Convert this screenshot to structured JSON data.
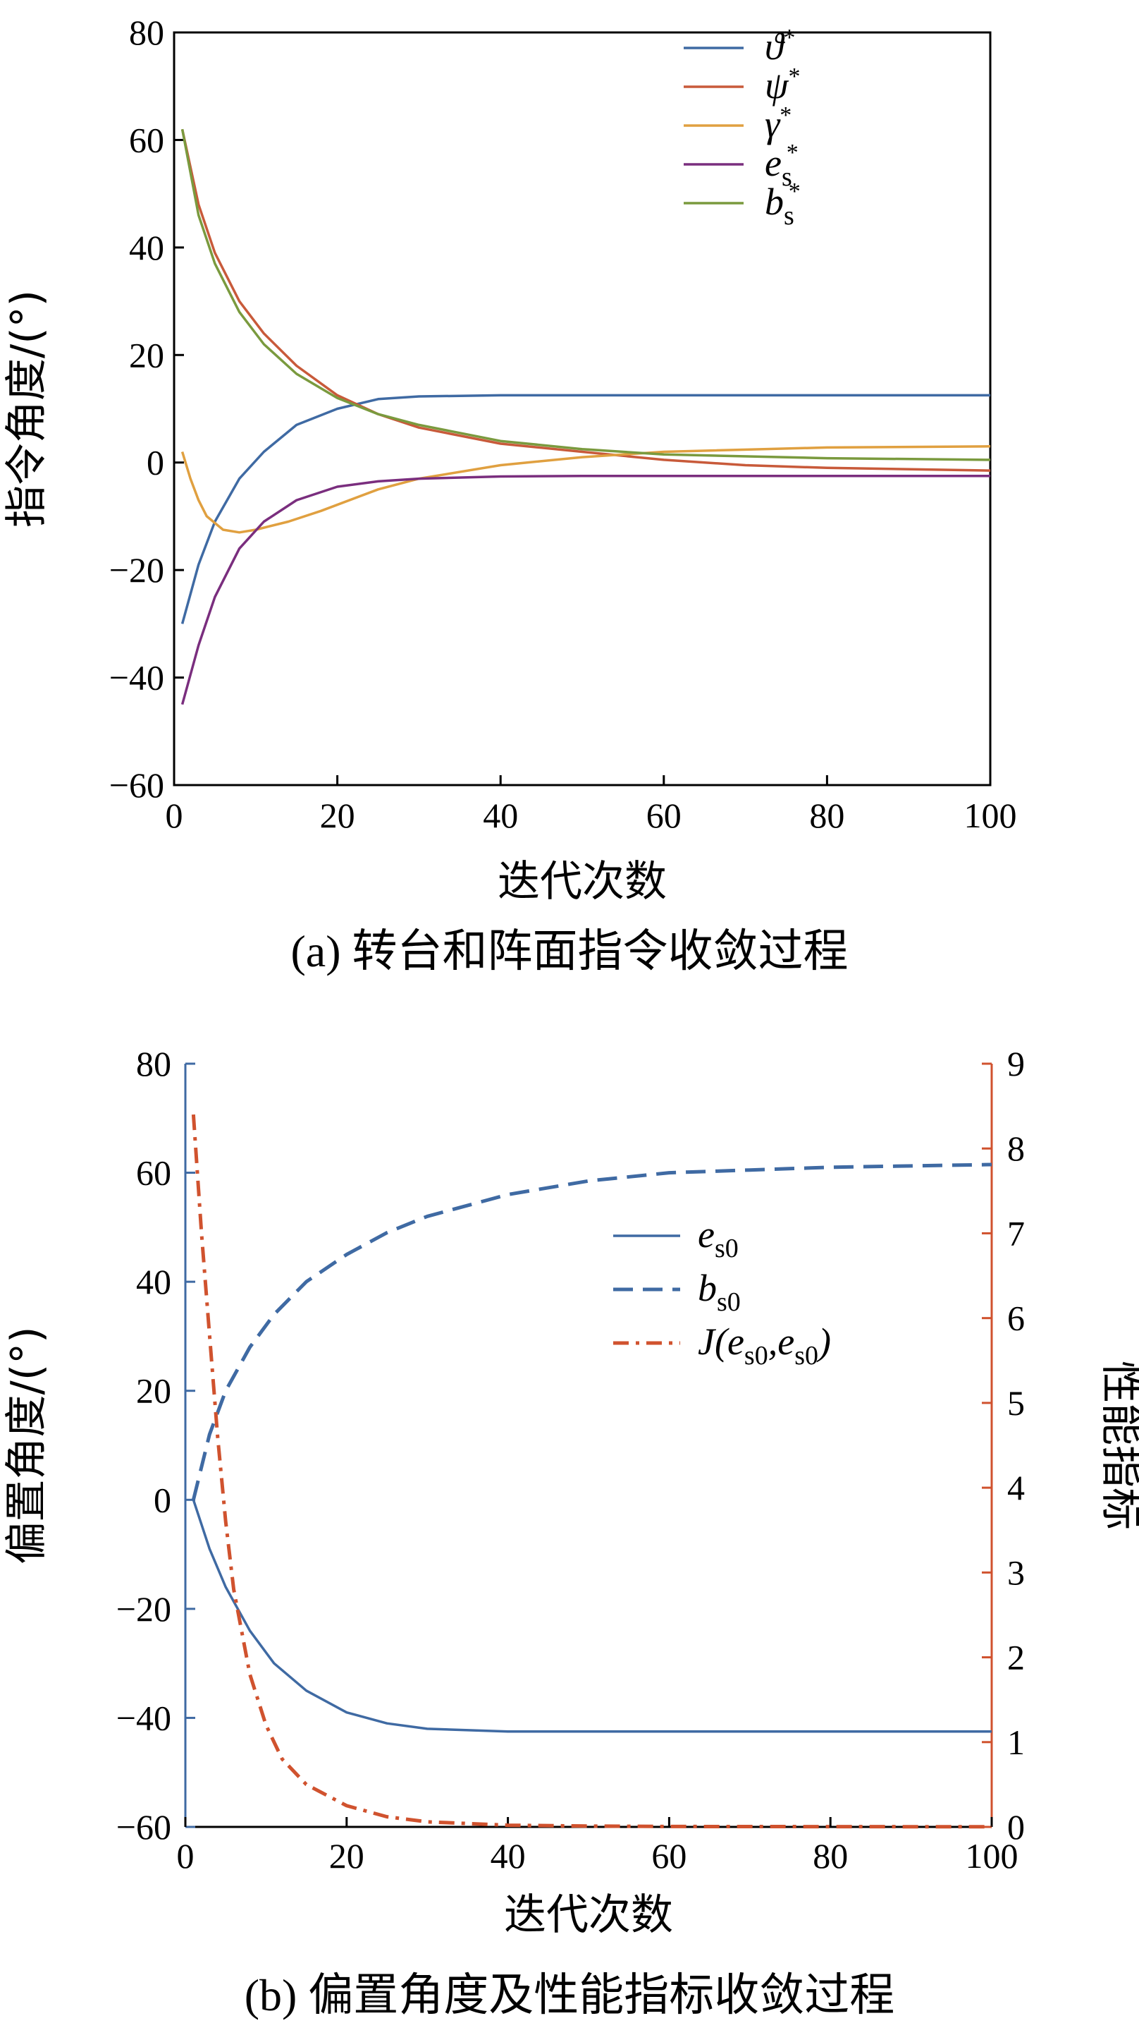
{
  "chart_data": [
    {
      "type": "line",
      "caption": "(a) 转台和阵面指令收敛过程",
      "xlabel": "迭代次数",
      "ylabel": "指令角度/(°)",
      "xlim": [
        0,
        100
      ],
      "ylim": [
        -60,
        80
      ],
      "xticks": [
        "0",
        "20",
        "40",
        "60",
        "80",
        "100"
      ],
      "yticks": [
        "80",
        "60",
        "40",
        "20",
        "0",
        "−20",
        "−40",
        "−60"
      ],
      "legend_position": "top-right",
      "series": [
        {
          "name": "ϑ*",
          "base": "ϑ",
          "sub": "",
          "sup": "*",
          "color": "#3f6aa3",
          "x": [
            1,
            3,
            5,
            8,
            11,
            15,
            20,
            25,
            30,
            40,
            50,
            60,
            80,
            100
          ],
          "y": [
            -30,
            -19,
            -11,
            -3,
            2,
            7,
            10,
            11.8,
            12.3,
            12.5,
            12.5,
            12.5,
            12.5,
            12.5
          ]
        },
        {
          "name": "ψ*",
          "base": "ψ",
          "sub": "",
          "sup": "*",
          "color": "#c85a3a",
          "x": [
            1,
            3,
            5,
            8,
            11,
            15,
            20,
            25,
            30,
            40,
            50,
            60,
            70,
            80,
            100
          ],
          "y": [
            62,
            48,
            39,
            30,
            24,
            18,
            12.5,
            9,
            6.5,
            3.5,
            2,
            0.5,
            -0.5,
            -1,
            -1.5
          ]
        },
        {
          "name": "γ*",
          "base": "γ",
          "sub": "",
          "sup": "*",
          "color": "#e0a040",
          "x": [
            1,
            2,
            3,
            4,
            6,
            8,
            10,
            14,
            18,
            25,
            30,
            40,
            50,
            60,
            80,
            100
          ],
          "y": [
            2,
            -3,
            -7,
            -10,
            -12.5,
            -13,
            -12.5,
            -11,
            -9,
            -5,
            -3,
            -0.5,
            1,
            2,
            2.8,
            3
          ]
        },
        {
          "name": "es*",
          "base": "e",
          "sub": "s",
          "sup": "*",
          "color": "#7a2e7e",
          "x": [
            1,
            3,
            5,
            8,
            11,
            15,
            20,
            25,
            30,
            40,
            50,
            60,
            80,
            100
          ],
          "y": [
            -45,
            -34,
            -25,
            -16,
            -11,
            -7,
            -4.5,
            -3.5,
            -3,
            -2.6,
            -2.5,
            -2.5,
            -2.5,
            -2.5
          ]
        },
        {
          "name": "bs*",
          "base": "b",
          "sub": "s",
          "sup": "*",
          "color": "#7a9a3e",
          "x": [
            1,
            3,
            5,
            8,
            11,
            15,
            20,
            25,
            30,
            40,
            50,
            60,
            80,
            100
          ],
          "y": [
            62,
            46,
            37,
            28,
            22,
            16.5,
            12,
            9,
            7,
            4,
            2.5,
            1.5,
            0.8,
            0.5
          ]
        }
      ]
    },
    {
      "type": "line",
      "caption": "(b) 偏置角度及性能指标收敛过程",
      "xlabel": "迭代次数",
      "ylabel": "偏置角度/(°)",
      "y2label": "性能指标",
      "xlim": [
        0,
        100
      ],
      "ylim": [
        -60,
        80
      ],
      "y2lim": [
        0,
        9
      ],
      "xticks": [
        "0",
        "20",
        "40",
        "60",
        "80",
        "100"
      ],
      "yticks": [
        "80",
        "60",
        "40",
        "20",
        "0",
        "−20",
        "−40",
        "−60"
      ],
      "y2ticks": [
        "9",
        "8",
        "7",
        "6",
        "5",
        "4",
        "3",
        "2",
        "1",
        "0"
      ],
      "legend_position": "center-right",
      "series": [
        {
          "name": "es0",
          "base": "e",
          "sub": "s0",
          "color": "#3f6aa3",
          "dash": "solid",
          "axis": "left",
          "x": [
            1,
            3,
            5,
            8,
            11,
            15,
            20,
            25,
            30,
            40,
            50,
            60,
            80,
            100
          ],
          "y": [
            0,
            -9,
            -16,
            -24,
            -30,
            -35,
            -39,
            -41,
            -42,
            -42.5,
            -42.5,
            -42.5,
            -42.5,
            -42.5
          ]
        },
        {
          "name": "bs0",
          "base": "b",
          "sub": "s0",
          "color": "#3f6aa3",
          "dash": "dashed",
          "axis": "left",
          "x": [
            1,
            3,
            5,
            8,
            11,
            15,
            20,
            25,
            30,
            40,
            50,
            60,
            70,
            80,
            100
          ],
          "y": [
            0,
            12,
            20,
            28,
            34,
            40,
            45,
            49,
            52,
            56,
            58.5,
            60,
            60.5,
            61,
            61.5
          ]
        },
        {
          "name": "J(es0,es0)",
          "label": "J(e",
          "sub": "s0",
          "mid": ",e",
          "sub2": "s0",
          "tail": ")",
          "color": "#d0522e",
          "dash": "dashdot",
          "axis": "right",
          "x": [
            1,
            2,
            3,
            4,
            5,
            6,
            8,
            10,
            12,
            15,
            20,
            25,
            30,
            40,
            50,
            60,
            80,
            100
          ],
          "y": [
            8.4,
            7.0,
            5.8,
            4.6,
            3.6,
            2.8,
            1.8,
            1.2,
            0.8,
            0.5,
            0.25,
            0.12,
            0.06,
            0.02,
            0.01,
            0.005,
            0.003,
            0.002
          ]
        }
      ]
    }
  ]
}
